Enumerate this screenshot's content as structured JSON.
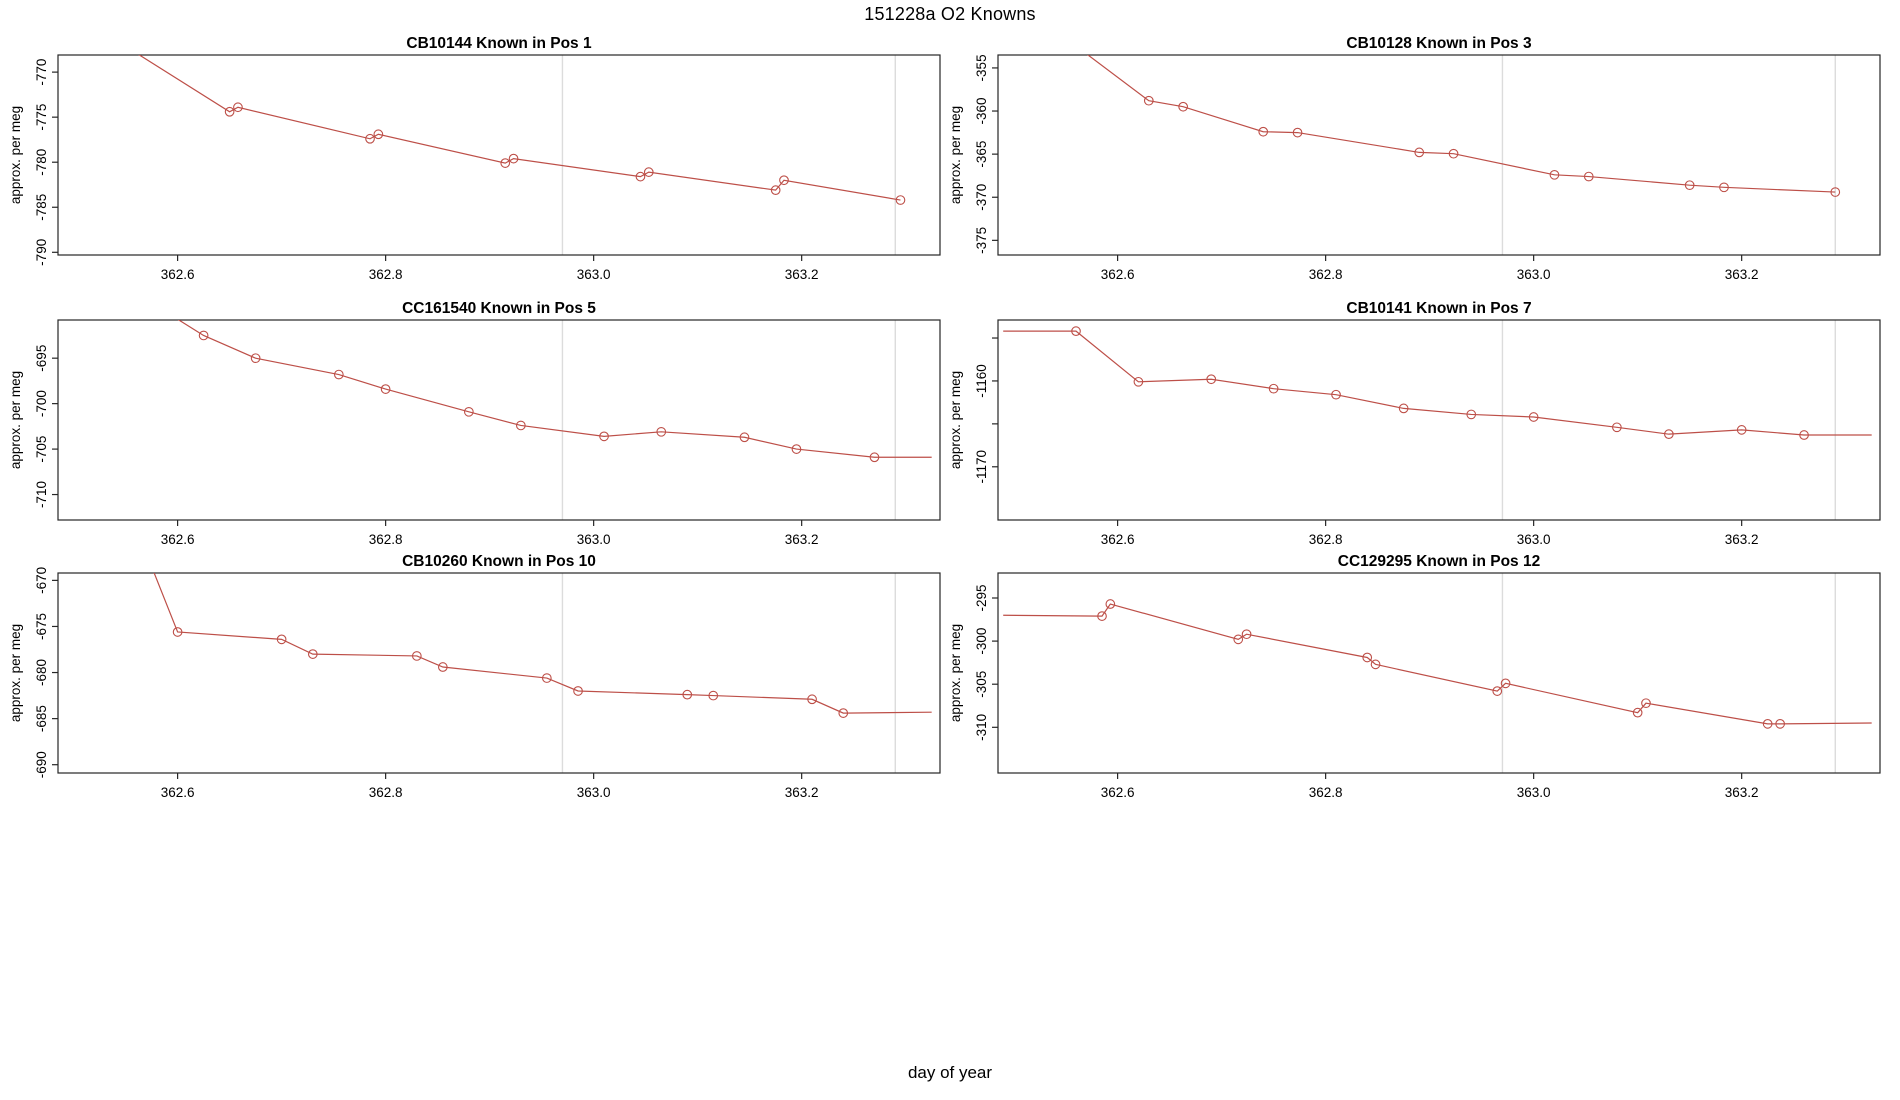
{
  "page": {
    "title": "151228a   O2 Knowns",
    "xlabel": "day of year"
  },
  "colors": {
    "line": "#bd4f48",
    "grid": "#dcdcdc",
    "axis": "#262626",
    "text": "#000000"
  },
  "x_axis": {
    "lim": [
      362.485,
      363.333
    ],
    "ticks": [
      362.6,
      362.8,
      363.0,
      363.2
    ],
    "tick_labels": [
      "362.6",
      "362.8",
      "363.0",
      "363.2"
    ],
    "gridlines": [
      362.97,
      363.29
    ]
  },
  "chart_data": [
    {
      "type": "line",
      "title": "CB10144   Known in Pos 1",
      "ylabel": "approx. per meg",
      "ylim": [
        -790.3,
        -768.1
      ],
      "yticks": [
        {
          "v": -770,
          "label": "-770"
        },
        {
          "v": -775,
          "label": "-775"
        },
        {
          "v": -780,
          "label": "-780"
        },
        {
          "v": -785,
          "label": "-785"
        },
        {
          "v": -790,
          "label": "-790"
        }
      ],
      "points": [
        [
          362.555,
          -767.5,
          0
        ],
        [
          362.65,
          -774.4,
          1
        ],
        [
          362.658,
          -773.9,
          1
        ],
        [
          362.785,
          -777.4,
          1
        ],
        [
          362.793,
          -776.9,
          1
        ],
        [
          362.915,
          -780.1,
          1
        ],
        [
          362.923,
          -779.6,
          1
        ],
        [
          363.045,
          -781.6,
          1
        ],
        [
          363.053,
          -781.1,
          1
        ],
        [
          363.175,
          -783.1,
          1
        ],
        [
          363.183,
          -782.0,
          1
        ],
        [
          363.295,
          -784.2,
          1
        ]
      ]
    },
    {
      "type": "line",
      "title": "CB10128   Known in Pos 3",
      "ylabel": "approx. per meg",
      "ylim": [
        -376.7,
        -353.5
      ],
      "yticks": [
        {
          "v": -355,
          "label": "-355"
        },
        {
          "v": -360,
          "label": "-360"
        },
        {
          "v": -365,
          "label": "-365"
        },
        {
          "v": -370,
          "label": "-370"
        },
        {
          "v": -375,
          "label": "-375"
        }
      ],
      "points": [
        [
          362.555,
          -352.0,
          0
        ],
        [
          362.63,
          -358.8,
          1
        ],
        [
          362.663,
          -359.5,
          1
        ],
        [
          362.74,
          -362.4,
          1
        ],
        [
          362.773,
          -362.5,
          1
        ],
        [
          362.89,
          -364.8,
          1
        ],
        [
          362.923,
          -364.95,
          1
        ],
        [
          363.02,
          -367.4,
          1
        ],
        [
          363.053,
          -367.6,
          1
        ],
        [
          363.15,
          -368.6,
          1
        ],
        [
          363.183,
          -368.85,
          1
        ],
        [
          363.29,
          -369.4,
          1
        ]
      ]
    },
    {
      "type": "line",
      "title": "CC161540   Known in Pos 5",
      "ylabel": "approx. per meg",
      "ylim": [
        -712.8,
        -690.8
      ],
      "yticks": [
        {
          "v": -695,
          "label": "-695"
        },
        {
          "v": -700,
          "label": "-700"
        },
        {
          "v": -705,
          "label": "-705"
        },
        {
          "v": -710,
          "label": "-710"
        }
      ],
      "points": [
        [
          362.59,
          -690.0,
          0
        ],
        [
          362.625,
          -692.5,
          1
        ],
        [
          362.675,
          -695.0,
          1
        ],
        [
          362.755,
          -696.8,
          1
        ],
        [
          362.8,
          -698.4,
          1
        ],
        [
          362.88,
          -700.9,
          1
        ],
        [
          362.93,
          -702.4,
          1
        ],
        [
          363.01,
          -703.6,
          1
        ],
        [
          363.065,
          -703.1,
          1
        ],
        [
          363.145,
          -703.7,
          1
        ],
        [
          363.195,
          -705.0,
          1
        ],
        [
          363.27,
          -705.9,
          1
        ],
        [
          363.325,
          -705.9,
          0
        ]
      ]
    },
    {
      "type": "line",
      "title": "CB10141   Known in Pos 7",
      "ylabel": "approx. per meg",
      "ylim": [
        -1176.2,
        -1152.9
      ],
      "yticks": [
        {
          "v": -1155,
          "label": ""
        },
        {
          "v": -1160,
          "label": "-1160"
        },
        {
          "v": -1165,
          "label": ""
        },
        {
          "v": -1170,
          "label": "-1170"
        }
      ],
      "points": [
        [
          362.49,
          -1154.2,
          0
        ],
        [
          362.56,
          -1154.2,
          1
        ],
        [
          362.62,
          -1160.1,
          1
        ],
        [
          362.69,
          -1159.8,
          1
        ],
        [
          362.75,
          -1160.9,
          1
        ],
        [
          362.81,
          -1161.6,
          1
        ],
        [
          362.875,
          -1163.2,
          1
        ],
        [
          362.94,
          -1163.9,
          1
        ],
        [
          363.0,
          -1164.2,
          1
        ],
        [
          363.08,
          -1165.4,
          1
        ],
        [
          363.13,
          -1166.2,
          1
        ],
        [
          363.2,
          -1165.7,
          1
        ],
        [
          363.26,
          -1166.3,
          1
        ],
        [
          363.325,
          -1166.3,
          0
        ]
      ]
    },
    {
      "type": "line",
      "title": "CB10260   Known in Pos 10",
      "ylabel": "approx. per meg",
      "ylim": [
        -690.9,
        -669.2
      ],
      "yticks": [
        {
          "v": -670,
          "label": "-670"
        },
        {
          "v": -675,
          "label": "-675"
        },
        {
          "v": -680,
          "label": "-680"
        },
        {
          "v": -685,
          "label": "-685"
        },
        {
          "v": -690,
          "label": "-690"
        }
      ],
      "points": [
        [
          362.575,
          -668.5,
          0
        ],
        [
          362.6,
          -675.6,
          1
        ],
        [
          362.7,
          -676.4,
          1
        ],
        [
          362.73,
          -678.0,
          1
        ],
        [
          362.83,
          -678.2,
          1
        ],
        [
          362.855,
          -679.4,
          1
        ],
        [
          362.955,
          -680.6,
          1
        ],
        [
          362.985,
          -682.0,
          1
        ],
        [
          363.09,
          -682.4,
          1
        ],
        [
          363.115,
          -682.5,
          1
        ],
        [
          363.21,
          -682.9,
          1
        ],
        [
          363.24,
          -684.4,
          1
        ],
        [
          363.325,
          -684.3,
          0
        ]
      ]
    },
    {
      "type": "line",
      "title": "CC129295   Known in Pos 12",
      "ylabel": "approx. per meg",
      "ylim": [
        -315.3,
        -292.1
      ],
      "yticks": [
        {
          "v": -295,
          "label": "-295"
        },
        {
          "v": -300,
          "label": "-300"
        },
        {
          "v": -305,
          "label": "-305"
        },
        {
          "v": -310,
          "label": "-310"
        }
      ],
      "points": [
        [
          362.49,
          -297.0,
          0
        ],
        [
          362.585,
          -297.1,
          1
        ],
        [
          362.593,
          -295.7,
          1
        ],
        [
          362.716,
          -299.8,
          1
        ],
        [
          362.724,
          -299.2,
          1
        ],
        [
          362.84,
          -301.9,
          1
        ],
        [
          362.848,
          -302.7,
          1
        ],
        [
          362.965,
          -305.8,
          1
        ],
        [
          362.973,
          -304.9,
          1
        ],
        [
          363.1,
          -308.3,
          1
        ],
        [
          363.108,
          -307.2,
          1
        ],
        [
          363.225,
          -309.6,
          1
        ],
        [
          363.237,
          -309.6,
          1
        ],
        [
          363.325,
          -309.5,
          0
        ]
      ]
    }
  ]
}
